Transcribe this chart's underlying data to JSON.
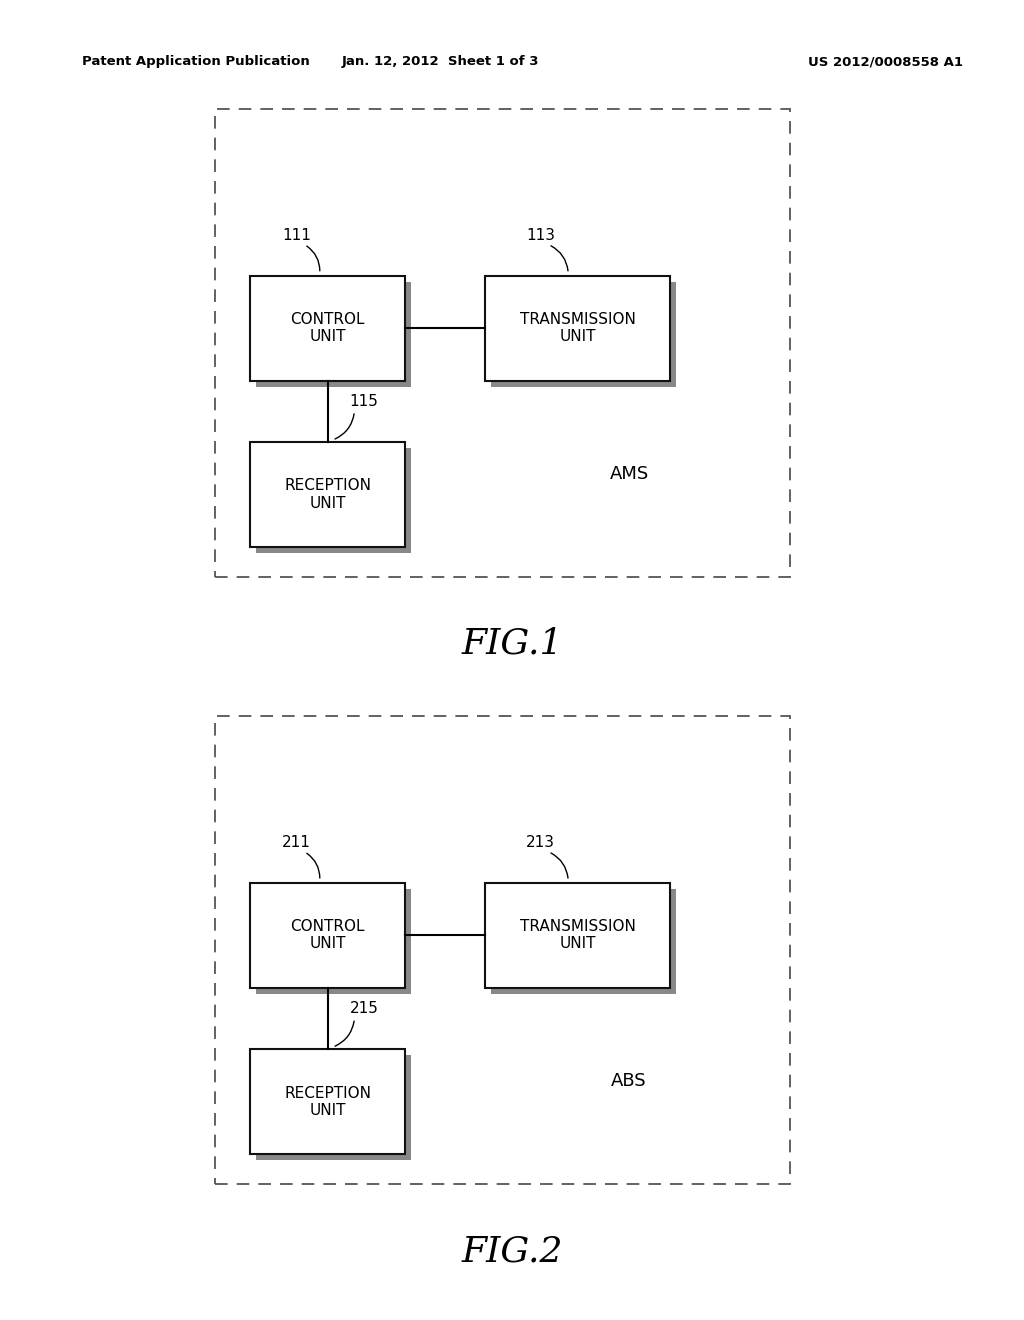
{
  "bg_color": "#ffffff",
  "header_left": "Patent Application Publication",
  "header_center": "Jan. 12, 2012  Sheet 1 of 3",
  "header_right": "US 2012/0008558 A1",
  "fig1": {
    "label": "FIG.1",
    "label_name": "AMS",
    "control_label": "111",
    "transmission_label": "113",
    "reception_label": "115",
    "control_text": "CONTROL\nUNIT",
    "transmission_text": "TRANSMISSION\nUNIT",
    "reception_text": "RECEPTION\nUNIT"
  },
  "fig2": {
    "label": "FIG.2",
    "label_name": "ABS",
    "control_label": "211",
    "transmission_label": "213",
    "reception_label": "215",
    "control_text": "CONTROL\nUNIT",
    "transmission_text": "TRANSMISSION\nUNIT",
    "reception_text": "RECEPTION\nUNIT"
  }
}
